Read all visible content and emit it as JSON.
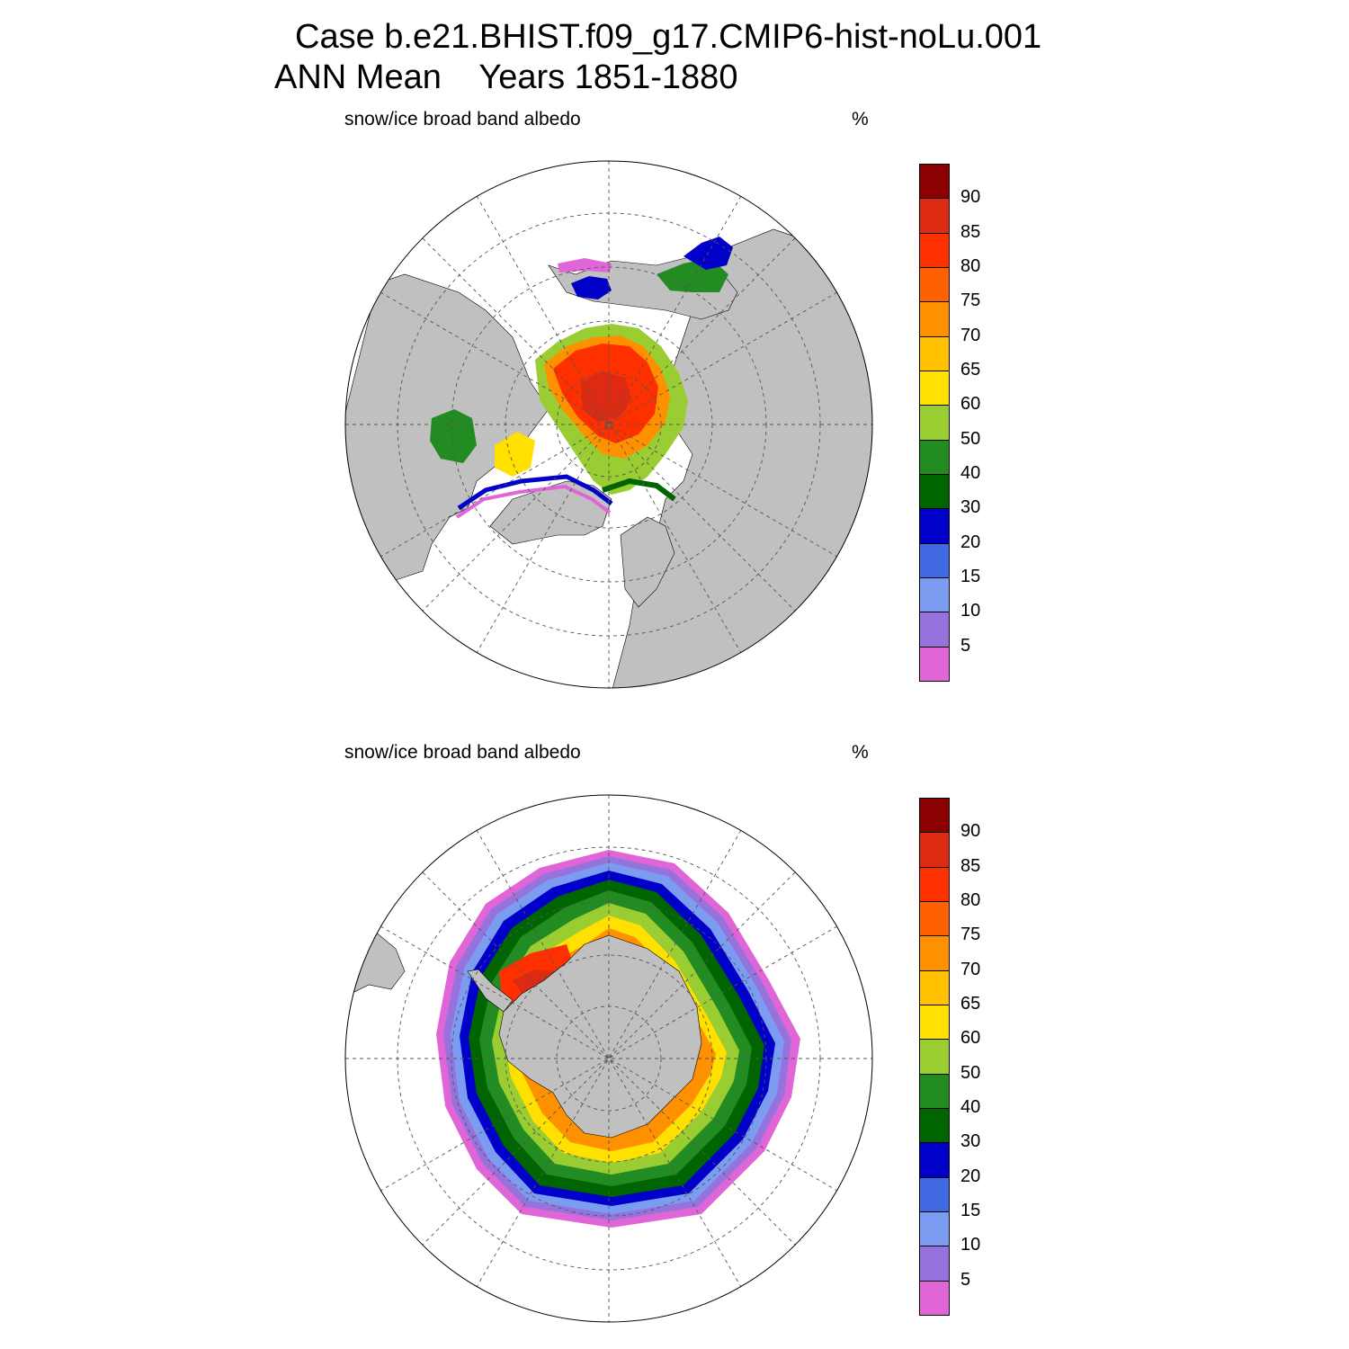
{
  "title_line1": "Case b.e21.BHIST.f09_g17.CMIP6-hist-noLu.001",
  "title_line2": "ANN Mean    Years 1851-1880",
  "panels": [
    {
      "id": "north",
      "hemisphere": "Northern Hemisphere",
      "label": "snow/ice broad band albedo",
      "unit": "%"
    },
    {
      "id": "south",
      "hemisphere": "Southern Hemisphere",
      "label": "snow/ice broad band albedo",
      "unit": "%"
    }
  ],
  "colorbar": {
    "levels": [
      "5",
      "10",
      "15",
      "20",
      "30",
      "40",
      "50",
      "60",
      "65",
      "70",
      "75",
      "80",
      "85",
      "90"
    ],
    "colors": [
      "#e066d8",
      "#9673dc",
      "#7b9cf0",
      "#4169e1",
      "#0000c8",
      "#006400",
      "#228b22",
      "#9acd32",
      "#ffe000",
      "#ffc000",
      "#ff9000",
      "#ff6000",
      "#ff3000",
      "#dd2a12",
      "#8b0000"
    ]
  },
  "colors": {
    "land": "#c0c0c0",
    "ocean": "#ffffff",
    "grid": "#555555"
  }
}
